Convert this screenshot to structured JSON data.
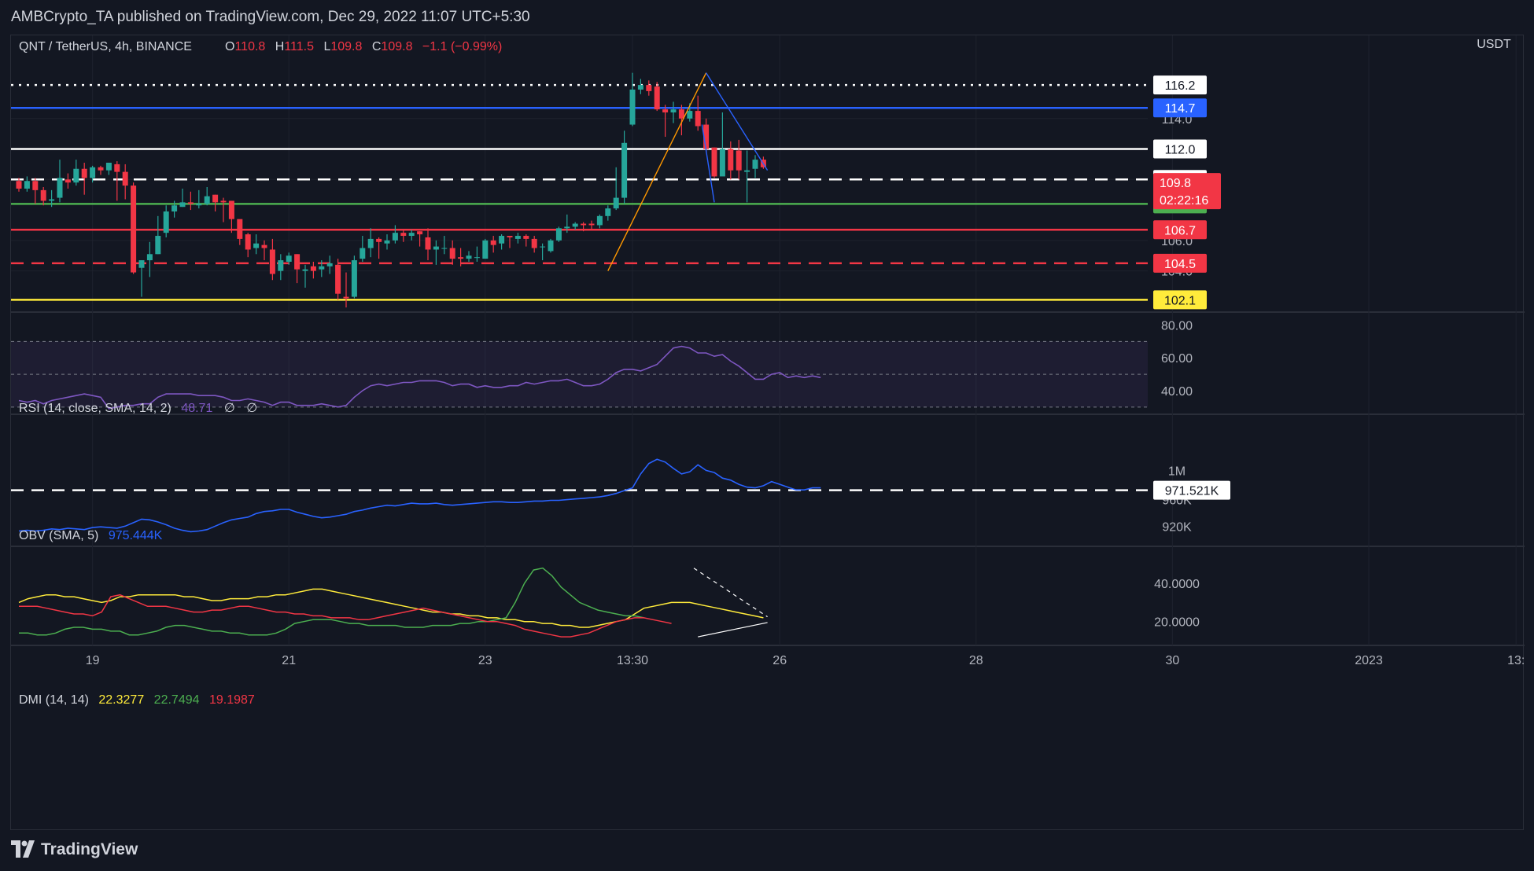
{
  "header": {
    "publisher_text": "AMBCrypto_TA published on TradingView.com, Dec 29, 2022 11:07 UTC+5:30"
  },
  "footer": {
    "brand": "TradingView"
  },
  "colors": {
    "background": "#131722",
    "up": "#26a69a",
    "down": "#f23645",
    "white": "#ffffff",
    "blue": "#2962ff",
    "green": "#4caf50",
    "red": "#f23645",
    "yellow": "#ffeb3b",
    "orange": "#ff9800",
    "rsi": "#7e57c2",
    "obv": "#2962ff"
  },
  "chart_data": [
    {
      "type": "candlestick",
      "symbol": "QNT / TetherUS, 4h, BINANCE",
      "ohlc": {
        "o_label": "O",
        "o": "110.8",
        "h_label": "H",
        "h": "111.5",
        "l_label": "L",
        "l": "109.8",
        "c_label": "C",
        "c": "109.8",
        "change": "−1.1 (−0.99%)"
      },
      "currency": "USDT",
      "ylim": [
        101.4,
        117.6
      ],
      "x_ticks": [
        {
          "label": "19",
          "index": 9
        },
        {
          "label": "21",
          "index": 33
        },
        {
          "label": "23",
          "index": 57
        },
        {
          "label": "13:30",
          "index": 75
        },
        {
          "label": "26",
          "index": 93
        },
        {
          "label": "28",
          "index": 117
        },
        {
          "label": "30",
          "index": 141
        },
        {
          "label": "2023",
          "index": 165
        },
        {
          "label": "13:",
          "index": 183
        }
      ],
      "y_ticks": [
        {
          "label": "114.0",
          "value": 114.0
        },
        {
          "label": "110.0",
          "value": 110.0
        },
        {
          "label": "106.0",
          "value": 106.0
        },
        {
          "label": "104.0",
          "value": 104.0
        }
      ],
      "levels": [
        {
          "label": "116.2",
          "value": 116.2,
          "color": "#ffffff",
          "style": "dotted",
          "badge_bg": "#ffffff",
          "badge_fg": "#131722"
        },
        {
          "label": "114.7",
          "value": 114.7,
          "color": "#2962ff",
          "style": "solid",
          "badge_bg": "#2962ff",
          "badge_fg": "#ffffff"
        },
        {
          "label": "112.0",
          "value": 112.0,
          "color": "#ffffff",
          "style": "solid",
          "badge_bg": "#ffffff",
          "badge_fg": "#131722"
        },
        {
          "label": "110.0",
          "value": 110.0,
          "color": "#ffffff",
          "style": "dashed",
          "badge_bg": "#ffffff",
          "badge_fg": "#131722"
        },
        {
          "label": "108.4",
          "value": 108.4,
          "color": "#4caf50",
          "style": "solid",
          "badge_bg": "#4caf50",
          "badge_fg": "#131722"
        },
        {
          "label": "106.7",
          "value": 106.7,
          "color": "#f23645",
          "style": "solid",
          "badge_bg": "#f23645",
          "badge_fg": "#ffffff"
        },
        {
          "label": "104.5",
          "value": 104.5,
          "color": "#f23645",
          "style": "dashed",
          "badge_bg": "#f23645",
          "badge_fg": "#ffffff"
        },
        {
          "label": "102.1",
          "value": 102.1,
          "color": "#ffeb3b",
          "style": "solid",
          "badge_bg": "#ffeb3b",
          "badge_fg": "#131722"
        }
      ],
      "last_price": {
        "label": "109.8",
        "countdown": "02:22:16",
        "value": 109.8
      },
      "candles": [
        [
          109.9,
          109.4,
          110.1,
          109.2
        ],
        [
          109.4,
          109.9,
          110.2,
          109.2
        ],
        [
          109.9,
          109.3,
          110.1,
          108.4
        ],
        [
          109.3,
          108.6,
          109.5,
          108.3
        ],
        [
          108.6,
          108.7,
          109.3,
          108.2
        ],
        [
          108.8,
          110.1,
          111.3,
          108.5
        ],
        [
          110.0,
          109.8,
          110.4,
          109.4
        ],
        [
          109.8,
          110.7,
          111.3,
          109.6
        ],
        [
          110.7,
          110.1,
          111.1,
          109.0
        ],
        [
          110.1,
          110.8,
          110.9,
          109.8
        ],
        [
          110.8,
          110.6,
          110.9,
          110.3
        ],
        [
          110.6,
          111.1,
          111.1,
          110.3
        ],
        [
          111.0,
          110.5,
          111.2,
          108.6
        ],
        [
          110.5,
          109.6,
          111.0,
          108.7
        ],
        [
          109.6,
          103.9,
          109.8,
          103.8
        ],
        [
          104.2,
          104.7,
          104.7,
          102.3
        ],
        [
          104.7,
          105.1,
          105.9,
          103.6
        ],
        [
          105.1,
          106.3,
          107.6,
          105.1
        ],
        [
          106.5,
          107.9,
          108.3,
          106.2
        ],
        [
          107.9,
          108.3,
          108.6,
          107.5
        ],
        [
          108.2,
          108.5,
          109.4,
          108.2
        ],
        [
          108.5,
          108.4,
          109.2,
          108.0
        ],
        [
          108.3,
          108.4,
          109.3,
          108.1
        ],
        [
          108.4,
          108.9,
          109.5,
          108.3
        ],
        [
          109.0,
          108.5,
          109.0,
          107.9
        ],
        [
          108.6,
          108.5,
          108.8,
          107.2
        ],
        [
          108.6,
          107.4,
          108.4,
          106.5
        ],
        [
          107.4,
          106.1,
          107.1,
          105.7
        ],
        [
          106.4,
          105.4,
          106.5,
          104.9
        ],
        [
          105.5,
          105.8,
          106.4,
          105.1
        ],
        [
          105.7,
          105.5,
          106.0,
          104.7
        ],
        [
          105.4,
          103.8,
          106.1,
          103.4
        ],
        [
          104.0,
          104.7,
          105.1,
          103.4
        ],
        [
          104.6,
          105.0,
          105.2,
          104.4
        ],
        [
          105.1,
          104.1,
          105.1,
          103.2
        ],
        [
          104.0,
          104.1,
          104.4,
          102.9
        ],
        [
          104.3,
          104.0,
          104.6,
          103.5
        ],
        [
          104.1,
          104.3,
          104.7,
          103.6
        ],
        [
          104.3,
          104.5,
          105.0,
          103.8
        ],
        [
          104.4,
          102.5,
          104.8,
          102.1
        ],
        [
          102.3,
          102.2,
          103.9,
          101.6
        ],
        [
          102.3,
          104.7,
          105.0,
          102.2
        ],
        [
          104.8,
          105.5,
          106.3,
          104.6
        ],
        [
          105.5,
          106.1,
          106.8,
          104.9
        ],
        [
          106.1,
          105.9,
          106.2,
          104.8
        ],
        [
          105.8,
          106.0,
          106.4,
          105.4
        ],
        [
          106.0,
          106.5,
          107.0,
          105.8
        ],
        [
          106.5,
          106.3,
          106.7,
          105.9
        ],
        [
          106.3,
          106.5,
          106.7,
          106.0
        ],
        [
          106.6,
          106.4,
          106.6,
          105.6
        ],
        [
          106.2,
          105.4,
          106.8,
          104.7
        ],
        [
          105.4,
          105.6,
          106.0,
          104.4
        ],
        [
          105.5,
          105.5,
          106.3,
          105.1
        ],
        [
          105.5,
          104.8,
          106.0,
          104.4
        ],
        [
          104.9,
          104.8,
          105.5,
          104.3
        ],
        [
          104.8,
          105.0,
          105.3,
          104.6
        ],
        [
          104.9,
          104.9,
          105.6,
          104.6
        ],
        [
          104.8,
          106.0,
          106.1,
          104.8
        ],
        [
          106.0,
          105.7,
          106.3,
          105.2
        ],
        [
          105.8,
          106.3,
          106.4,
          105.4
        ],
        [
          106.3,
          106.2,
          106.3,
          105.5
        ],
        [
          106.1,
          106.3,
          106.5,
          105.8
        ],
        [
          106.3,
          106.1,
          106.4,
          105.6
        ],
        [
          106.1,
          105.5,
          106.3,
          105.2
        ],
        [
          105.6,
          105.6,
          105.8,
          104.7
        ],
        [
          105.3,
          106.0,
          106.1,
          105.2
        ],
        [
          106.0,
          106.8,
          106.9,
          105.9
        ],
        [
          106.8,
          106.9,
          107.7,
          106.5
        ],
        [
          106.9,
          107.1,
          107.2,
          106.7
        ],
        [
          107.1,
          107.0,
          107.2,
          106.6
        ],
        [
          107.1,
          107.0,
          107.3,
          106.7
        ],
        [
          107.0,
          107.6,
          107.7,
          106.8
        ],
        [
          107.6,
          108.1,
          108.3,
          107.3
        ],
        [
          108.1,
          108.8,
          110.8,
          108.0
        ],
        [
          108.8,
          112.4,
          113.2,
          108.4
        ],
        [
          113.6,
          115.9,
          117.0,
          113.5
        ],
        [
          115.9,
          116.2,
          116.6,
          115.6
        ],
        [
          116.2,
          115.8,
          116.5,
          115.5
        ],
        [
          116.1,
          114.6,
          116.4,
          114.5
        ],
        [
          114.6,
          114.4,
          114.9,
          112.8
        ],
        [
          114.4,
          114.6,
          115.1,
          113.7
        ],
        [
          114.6,
          114.0,
          114.9,
          112.9
        ],
        [
          114.0,
          114.5,
          115.0,
          113.8
        ],
        [
          114.5,
          113.5,
          115.5,
          113.2
        ],
        [
          113.6,
          112.0,
          114.0,
          111.8
        ],
        [
          112.1,
          110.2,
          112.1,
          110.1
        ],
        [
          110.2,
          112.0,
          114.4,
          110.3
        ],
        [
          112.0,
          110.6,
          112.5,
          110.0
        ],
        [
          111.9,
          110.6,
          112.6,
          110.0
        ],
        [
          110.5,
          110.6,
          111.9,
          108.5
        ],
        [
          110.7,
          111.3,
          111.6,
          110.1
        ],
        [
          111.3,
          110.8,
          111.5,
          110.7
        ]
      ],
      "layout": {
        "first_index": 0,
        "index_step": 1
      }
    },
    {
      "type": "line",
      "name": "RSI (14, close, SMA, 14, 2)",
      "value_text": "48.71",
      "extras": [
        "∅",
        "∅"
      ],
      "ylim": [
        28,
        86
      ],
      "y_ticks": [
        {
          "label": "80.00",
          "value": 80
        },
        {
          "label": "60.00",
          "value": 60
        },
        {
          "label": "40.00",
          "value": 40
        }
      ],
      "band": [
        30,
        70
      ],
      "midline": 50,
      "values": [
        34,
        33,
        34,
        32,
        34,
        35,
        36,
        37,
        38,
        37,
        36,
        29,
        30,
        31,
        31,
        32,
        32,
        36,
        38,
        38,
        38,
        38,
        37,
        37,
        37,
        36,
        34,
        34,
        35,
        34,
        33,
        31,
        33,
        33,
        31,
        31,
        31,
        32,
        31,
        30,
        31,
        36,
        40,
        43,
        44,
        43,
        44,
        45,
        45,
        46,
        46,
        46,
        45,
        43,
        44,
        44,
        42,
        43,
        42,
        42,
        43,
        43,
        45,
        44,
        45,
        46,
        46,
        47,
        45,
        43,
        43,
        44,
        47,
        51,
        53,
        53,
        52,
        54,
        56,
        61,
        66,
        67,
        66,
        63,
        63,
        61,
        62,
        58,
        55,
        51,
        47,
        47,
        50,
        51,
        48,
        49,
        48,
        49,
        48
      ]
    },
    {
      "type": "line",
      "name": "OBV (SMA, 5)",
      "value_text": "975.444K",
      "ylim": [
        900,
        1040
      ],
      "y_ticks": [
        {
          "label": "1M",
          "value": 1000
        },
        {
          "label": "960K",
          "value": 958
        },
        {
          "label": "920K",
          "value": 920
        }
      ],
      "ref_line": {
        "label": "971.521K",
        "value": 971.521
      },
      "values": [
        913,
        914,
        913,
        914,
        916,
        915,
        917,
        916,
        915,
        918,
        919,
        918,
        917,
        920,
        925,
        930,
        929,
        926,
        922,
        917,
        914,
        912,
        913,
        915,
        920,
        925,
        929,
        931,
        933,
        938,
        941,
        942,
        944,
        944,
        940,
        937,
        934,
        932,
        933,
        935,
        937,
        941,
        943,
        946,
        948,
        950,
        949,
        951,
        953,
        952,
        952,
        953,
        951,
        950,
        951,
        952,
        953,
        954,
        955,
        955,
        954,
        954,
        955,
        956,
        956,
        957,
        957,
        958,
        959,
        960,
        961,
        962,
        964,
        967,
        971,
        975,
        995,
        1010,
        1016,
        1012,
        1003,
        995,
        998,
        1008,
        1000,
        997,
        989,
        986,
        980,
        976,
        975,
        978,
        984,
        980,
        976,
        972,
        972,
        975,
        975
      ]
    },
    {
      "type": "line",
      "name": "DMI (14, 14)",
      "values_text": [
        "22.3277",
        "22.7494",
        "19.1987"
      ],
      "ylim": [
        10,
        52
      ],
      "y_ticks": [
        {
          "label": "40.0000",
          "value": 40
        },
        {
          "label": "20.0000",
          "value": 20
        }
      ],
      "series": [
        {
          "color": "#ffeb3b",
          "values": [
            30,
            32,
            33,
            34,
            34,
            33,
            33,
            32,
            31,
            30,
            31,
            33,
            33,
            34,
            34,
            34,
            34,
            34,
            33,
            33,
            32,
            31,
            31,
            32,
            32,
            32,
            33,
            33,
            34,
            34,
            35,
            36,
            37,
            37,
            36,
            35,
            34,
            33,
            32,
            31,
            30,
            29,
            28,
            27,
            26,
            25,
            25,
            24,
            24,
            23,
            23,
            22,
            22,
            21,
            21,
            20,
            20,
            19,
            19,
            18,
            18,
            17,
            17,
            18,
            19,
            20,
            21,
            24,
            27,
            28,
            29,
            30,
            30,
            30,
            29,
            28,
            27,
            26,
            25,
            24,
            23,
            22
          ]
        },
        {
          "color": "#4caf50",
          "values": [
            14,
            14,
            13,
            13,
            14,
            16,
            17,
            17,
            16,
            16,
            15,
            15,
            13,
            13,
            14,
            15,
            17,
            18,
            18,
            17,
            16,
            15,
            15,
            14,
            14,
            13,
            13,
            13,
            14,
            16,
            19,
            20,
            21,
            21,
            21,
            20,
            19,
            19,
            18,
            18,
            18,
            18,
            17,
            17,
            17,
            18,
            18,
            18,
            19,
            19,
            20,
            20,
            21,
            22,
            30,
            40,
            47,
            48,
            44,
            38,
            34,
            30,
            28,
            26,
            25,
            24,
            23,
            23,
            22
          ]
        },
        {
          "color": "#f23645",
          "values": [
            28,
            28,
            28,
            27,
            26,
            25,
            24,
            24,
            23,
            25,
            33,
            34,
            32,
            30,
            28,
            28,
            28,
            27,
            26,
            25,
            25,
            26,
            26,
            27,
            28,
            28,
            27,
            26,
            25,
            25,
            24,
            24,
            23,
            23,
            22,
            22,
            22,
            21,
            21,
            22,
            23,
            24,
            25,
            26,
            27,
            26,
            25,
            24,
            23,
            22,
            21,
            20,
            20,
            19,
            18,
            16,
            15,
            14,
            13,
            12,
            12,
            13,
            14,
            16,
            18,
            20,
            21,
            22,
            22,
            21,
            20,
            19
          ]
        }
      ]
    }
  ]
}
